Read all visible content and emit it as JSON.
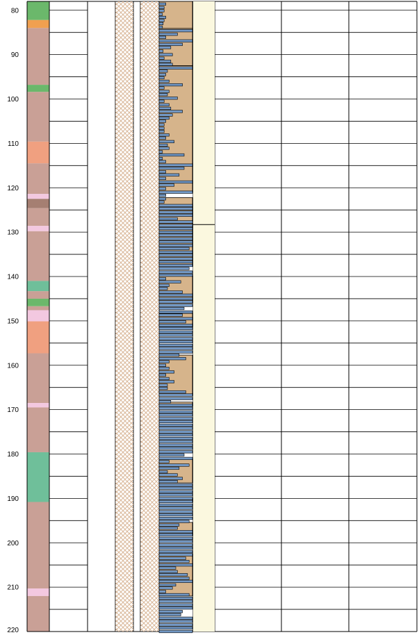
{
  "depth_axis": {
    "min": 78,
    "max": 220,
    "minor_step": 5,
    "ticks": [
      {
        "value": 80,
        "label": "80"
      },
      {
        "value": 90,
        "label": "90"
      },
      {
        "value": 100,
        "label": "100"
      },
      {
        "value": 110,
        "label": "110"
      },
      {
        "value": 120,
        "label": "120"
      },
      {
        "value": 130,
        "label": "130"
      },
      {
        "value": 140,
        "label": "140"
      },
      {
        "value": 150,
        "label": "150"
      },
      {
        "value": 160,
        "label": "160"
      },
      {
        "value": 170,
        "label": "170"
      },
      {
        "value": 180,
        "label": "180"
      },
      {
        "value": 190,
        "label": "190"
      },
      {
        "value": 200,
        "label": "200"
      },
      {
        "value": 210,
        "label": "210"
      },
      {
        "value": 220,
        "label": "220"
      }
    ]
  },
  "colors": {
    "green": "#6bb86b",
    "orange": "#f0a050",
    "rose": "#c9a096",
    "salmon": "#f0a080",
    "pink": "#f3c8e0",
    "brown": "#a57f72",
    "teal": "#6fbf9a",
    "sand": "#d6b48b",
    "bar": "#7399c6",
    "cream": "#fbf8df",
    "hatch": "#d9b89a",
    "grid": "#000000"
  },
  "lithology": [
    {
      "top": 78,
      "bottom": 82.2,
      "color": "green"
    },
    {
      "top": 82.2,
      "bottom": 84,
      "color": "orange"
    },
    {
      "top": 84,
      "bottom": 96.8,
      "color": "rose"
    },
    {
      "top": 96.8,
      "bottom": 98.4,
      "color": "green"
    },
    {
      "top": 98.4,
      "bottom": 109.6,
      "color": "rose"
    },
    {
      "top": 109.6,
      "bottom": 114.5,
      "color": "salmon"
    },
    {
      "top": 114.5,
      "bottom": 121.4,
      "color": "rose"
    },
    {
      "top": 121.4,
      "bottom": 122.5,
      "color": "pink"
    },
    {
      "top": 122.5,
      "bottom": 124.6,
      "color": "brown"
    },
    {
      "top": 124.6,
      "bottom": 128.6,
      "color": "rose"
    },
    {
      "top": 128.6,
      "bottom": 129.8,
      "color": "pink"
    },
    {
      "top": 129.8,
      "bottom": 141,
      "color": "rose"
    },
    {
      "top": 141,
      "bottom": 143.3,
      "color": "teal"
    },
    {
      "top": 143.3,
      "bottom": 145,
      "color": "rose"
    },
    {
      "top": 145,
      "bottom": 146.7,
      "color": "green"
    },
    {
      "top": 146.7,
      "bottom": 147.6,
      "color": "rose"
    },
    {
      "top": 147.6,
      "bottom": 150.1,
      "color": "pink"
    },
    {
      "top": 150.1,
      "bottom": 157.3,
      "color": "salmon"
    },
    {
      "top": 157.3,
      "bottom": 168.5,
      "color": "rose"
    },
    {
      "top": 168.5,
      "bottom": 169.5,
      "color": "pink"
    },
    {
      "top": 169.5,
      "bottom": 179.6,
      "color": "rose"
    },
    {
      "top": 179.6,
      "bottom": 190.8,
      "color": "teal"
    },
    {
      "top": 190.8,
      "bottom": 210.3,
      "color": "rose"
    },
    {
      "top": 210.3,
      "bottom": 212,
      "color": "pink"
    },
    {
      "top": 212,
      "bottom": 220,
      "color": "rose"
    }
  ],
  "sand_blocks": [
    {
      "top": 78,
      "bottom": 84.1
    },
    {
      "top": 84.1,
      "bottom": 92.5
    },
    {
      "top": 92.5,
      "bottom": 121
    },
    {
      "top": 122.2,
      "bottom": 125
    },
    {
      "top": 125,
      "bottom": 127.5
    },
    {
      "top": 128,
      "bottom": 137.7
    },
    {
      "top": 139.9,
      "bottom": 146
    },
    {
      "top": 148.3,
      "bottom": 151.3
    },
    {
      "top": 157.7,
      "bottom": 166.8
    },
    {
      "top": 168.3,
      "bottom": 169.2
    },
    {
      "top": 181.2,
      "bottom": 186.5
    },
    {
      "top": 190,
      "bottom": 190.8
    },
    {
      "top": 195.4,
      "bottom": 198.4
    },
    {
      "top": 202.5,
      "bottom": 212
    }
  ],
  "bar_scale": {
    "min": 0,
    "max": 1
  },
  "bars": [
    [
      78.6,
      0.2
    ],
    [
      79.4,
      0.15
    ],
    [
      80.1,
      0.15
    ],
    [
      80.9,
      0.1
    ],
    [
      81.6,
      0.2
    ],
    [
      82.3,
      0.15
    ],
    [
      83,
      0.12
    ],
    [
      83.8,
      0.1
    ],
    [
      84.6,
      1
    ],
    [
      85.4,
      0.55
    ],
    [
      86.1,
      0.2
    ],
    [
      86.9,
      1
    ],
    [
      87.7,
      0.7
    ],
    [
      88.4,
      0.35
    ],
    [
      89.2,
      0.12
    ],
    [
      90,
      0.4
    ],
    [
      90.8,
      0.15
    ],
    [
      91.5,
      0.35
    ],
    [
      92.2,
      0.4
    ],
    [
      93,
      1
    ],
    [
      93.7,
      0.25
    ],
    [
      94.5,
      0.2
    ],
    [
      95.2,
      0.15
    ],
    [
      96,
      0.3
    ],
    [
      96.8,
      0.7
    ],
    [
      97.5,
      0.15
    ],
    [
      98.3,
      0.3
    ],
    [
      99,
      0.25
    ],
    [
      99.8,
      0.55
    ],
    [
      100.5,
      0.15
    ],
    [
      101.3,
      0.3
    ],
    [
      102.1,
      0.35
    ],
    [
      102.8,
      0.7
    ],
    [
      103.6,
      0.4
    ],
    [
      104.3,
      0.3
    ],
    [
      105,
      0.2
    ],
    [
      105.8,
      0.15
    ],
    [
      106.6,
      0.15
    ],
    [
      107.3,
      0.15
    ],
    [
      108.1,
      0.3
    ],
    [
      108.8,
      0.2
    ],
    [
      109.6,
      0.45
    ],
    [
      110.4,
      0.25
    ],
    [
      111.1,
      0.3
    ],
    [
      111.9,
      0.1
    ],
    [
      112.6,
      0.75
    ],
    [
      113.4,
      0.1
    ],
    [
      114.1,
      0.2
    ],
    [
      114.9,
      1
    ],
    [
      115.6,
      0.75
    ],
    [
      116.4,
      0.2
    ],
    [
      117.1,
      0.6
    ],
    [
      117.9,
      0.2
    ],
    [
      118.7,
      1
    ],
    [
      119.4,
      0.45
    ],
    [
      120.2,
      0.2
    ],
    [
      121,
      1
    ],
    [
      121.7,
      0.2
    ],
    [
      122.5,
      0.2
    ],
    [
      123.2,
      0.15
    ],
    [
      124,
      1
    ],
    [
      124.7,
      1
    ],
    [
      125.5,
      1
    ],
    [
      126.2,
      1
    ],
    [
      127,
      0.55
    ],
    [
      127.7,
      1
    ],
    [
      128.5,
      1
    ],
    [
      129.2,
      1
    ],
    [
      130,
      1
    ],
    [
      130.7,
      1
    ],
    [
      131.5,
      1
    ],
    [
      132.2,
      1
    ],
    [
      133,
      1
    ],
    [
      133.7,
      0.9
    ],
    [
      134.5,
      1
    ],
    [
      135.2,
      1
    ],
    [
      136,
      1
    ],
    [
      136.7,
      1
    ],
    [
      137.5,
      1
    ],
    [
      138.2,
      0.9
    ],
    [
      139,
      1
    ],
    [
      139.7,
      1
    ],
    [
      140.5,
      0.2
    ],
    [
      141.2,
      0.65
    ],
    [
      142,
      0.3
    ],
    [
      142.7,
      0.25
    ],
    [
      143.5,
      0.7
    ],
    [
      144.2,
      1
    ],
    [
      145,
      1
    ],
    [
      145.7,
      1
    ],
    [
      146.5,
      1
    ],
    [
      147.2,
      0.75
    ],
    [
      148,
      1
    ],
    [
      148.7,
      0.7
    ],
    [
      149.5,
      1
    ],
    [
      150.2,
      0.8
    ],
    [
      151,
      1
    ],
    [
      151.7,
      1
    ],
    [
      152.5,
      1
    ],
    [
      153.2,
      1
    ],
    [
      154,
      1
    ],
    [
      154.7,
      1
    ],
    [
      155.5,
      1
    ],
    [
      156.2,
      1
    ],
    [
      157,
      1
    ],
    [
      157.7,
      0.6
    ],
    [
      158.5,
      0.8
    ],
    [
      159.2,
      0.3
    ],
    [
      160,
      0.2
    ],
    [
      160.7,
      0.3
    ],
    [
      161.5,
      0.45
    ],
    [
      162.2,
      0.2
    ],
    [
      163,
      0.3
    ],
    [
      163.7,
      0.45
    ],
    [
      164.5,
      0.25
    ],
    [
      165.2,
      0.25
    ],
    [
      166,
      0.8
    ],
    [
      166.7,
      1
    ],
    [
      167.5,
      1
    ],
    [
      168.2,
      0.35
    ],
    [
      169,
      1
    ],
    [
      169.7,
      1
    ],
    [
      170.5,
      1
    ],
    [
      171.2,
      1
    ],
    [
      172,
      1
    ],
    [
      172.7,
      1
    ],
    [
      173.5,
      1
    ],
    [
      174.2,
      1
    ],
    [
      175,
      1
    ],
    [
      175.7,
      1
    ],
    [
      176.5,
      1
    ],
    [
      177.2,
      1
    ],
    [
      178,
      1
    ],
    [
      178.7,
      1
    ],
    [
      179.5,
      1
    ],
    [
      180.2,
      0.75
    ],
    [
      181,
      1
    ],
    [
      181.7,
      0.3
    ],
    [
      182.5,
      0.9
    ],
    [
      183.2,
      0.6
    ],
    [
      184,
      0.25
    ],
    [
      184.7,
      0.55
    ],
    [
      185.5,
      0.7
    ],
    [
      186.2,
      0.55
    ],
    [
      187,
      1
    ],
    [
      187.7,
      1
    ],
    [
      188.5,
      1
    ],
    [
      189.2,
      1
    ],
    [
      190,
      1
    ],
    [
      190.7,
      1
    ],
    [
      191.5,
      1
    ],
    [
      192.2,
      1
    ],
    [
      193,
      1
    ],
    [
      193.7,
      1
    ],
    [
      194.5,
      1
    ],
    [
      195.2,
      0.9
    ],
    [
      196,
      0.6
    ],
    [
      196.7,
      0.55
    ],
    [
      197.5,
      1
    ],
    [
      198.2,
      1
    ],
    [
      199,
      1
    ],
    [
      199.7,
      1
    ],
    [
      200.5,
      1
    ],
    [
      201.2,
      1
    ],
    [
      202,
      1
    ],
    [
      202.7,
      1
    ],
    [
      203.5,
      0.8
    ],
    [
      204.2,
      0.9
    ],
    [
      205,
      1
    ],
    [
      205.7,
      0.5
    ],
    [
      206.5,
      0.55
    ],
    [
      207.2,
      0.85
    ],
    [
      208,
      0.9
    ],
    [
      208.7,
      1
    ],
    [
      209.5,
      0.5
    ],
    [
      210.2,
      0.4
    ],
    [
      211,
      0.2
    ],
    [
      211.7,
      0.9
    ],
    [
      212.5,
      1
    ],
    [
      213.2,
      1
    ],
    [
      214,
      1
    ],
    [
      214.7,
      1
    ],
    [
      215.5,
      0.7
    ],
    [
      216.2,
      0.65
    ],
    [
      217,
      1
    ],
    [
      217.7,
      1
    ],
    [
      218.5,
      1
    ],
    [
      219.2,
      1
    ],
    [
      220,
      1
    ]
  ],
  "cream_column": {
    "boundary_depth": 128.3
  }
}
